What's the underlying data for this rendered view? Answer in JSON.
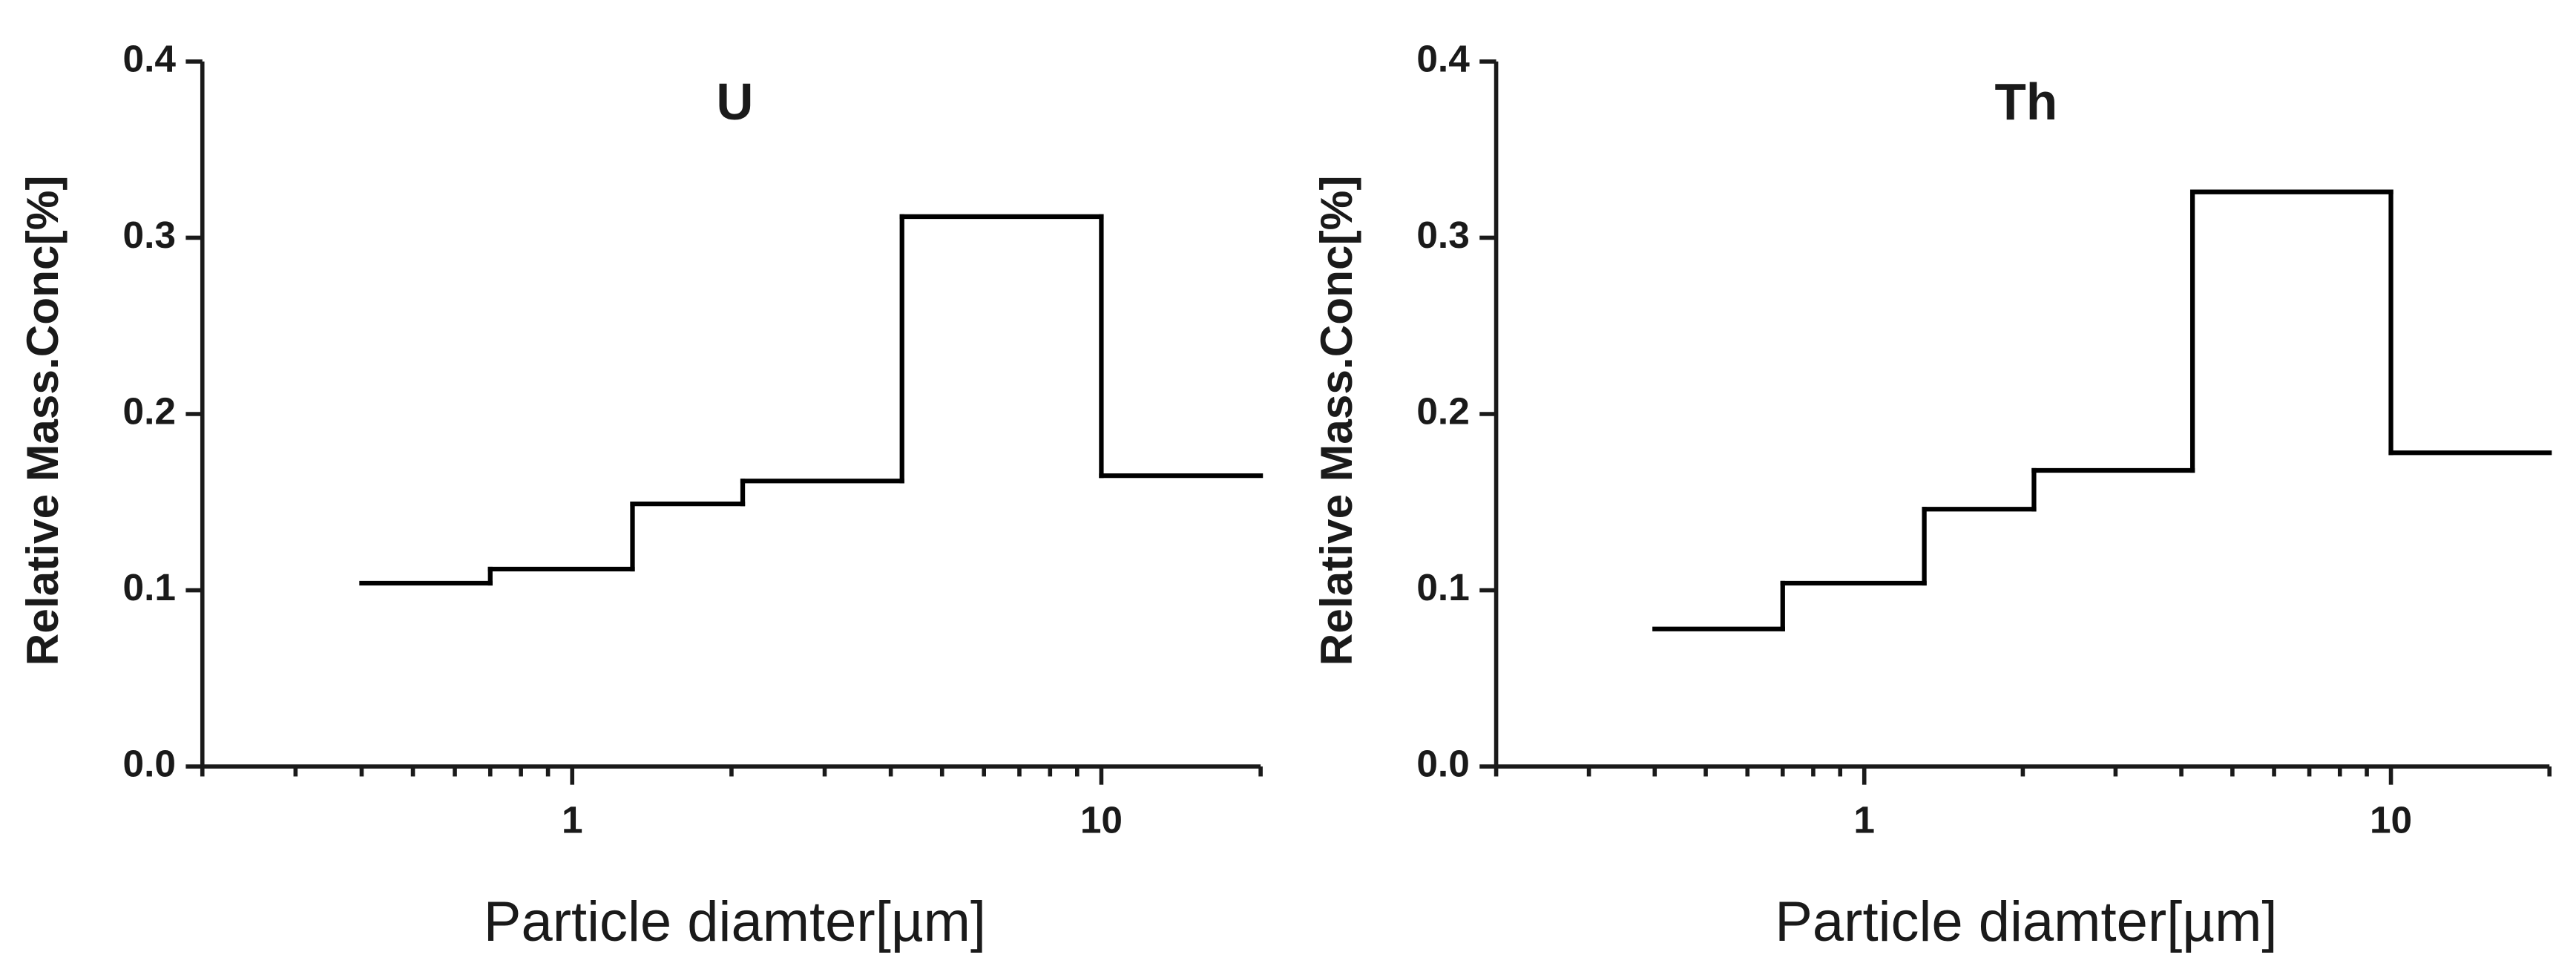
{
  "chart_data": [
    {
      "type": "histogram",
      "title": "U",
      "xlabel": "Particle diamter[µm]",
      "ylabel": "Relative Mass.Conc[%]",
      "bins": [
        0.4,
        0.7,
        1.3,
        2.1,
        4.2,
        10,
        20
      ],
      "values": [
        0.104,
        0.112,
        0.149,
        0.162,
        0.312,
        0.165
      ],
      "color": "#000000",
      "xscale": "log",
      "xlim": [
        0.2,
        20
      ],
      "xticks": [
        1,
        10
      ],
      "ylim": [
        0,
        0.4
      ],
      "yticks": [
        {
          "value": 0,
          "label": "0.0"
        },
        0.1,
        0.2,
        0.3,
        0.4
      ]
    },
    {
      "type": "histogram",
      "title": "Th",
      "xlabel": "Particle diamter[µm]",
      "ylabel": "Relative Mass.Conc[%]",
      "bins": [
        0.4,
        0.7,
        1.3,
        2.1,
        4.2,
        10,
        20
      ],
      "values": [
        0.078,
        0.104,
        0.146,
        0.168,
        0.326,
        0.178
      ],
      "color": "#000000",
      "xscale": "log",
      "xlim": [
        0.2,
        20
      ],
      "xticks": [
        1,
        10
      ],
      "ylim": [
        0,
        0.4
      ],
      "yticks": [
        {
          "value": 0,
          "label": "0.0"
        },
        0.1,
        0.2,
        0.3,
        0.4
      ]
    }
  ]
}
